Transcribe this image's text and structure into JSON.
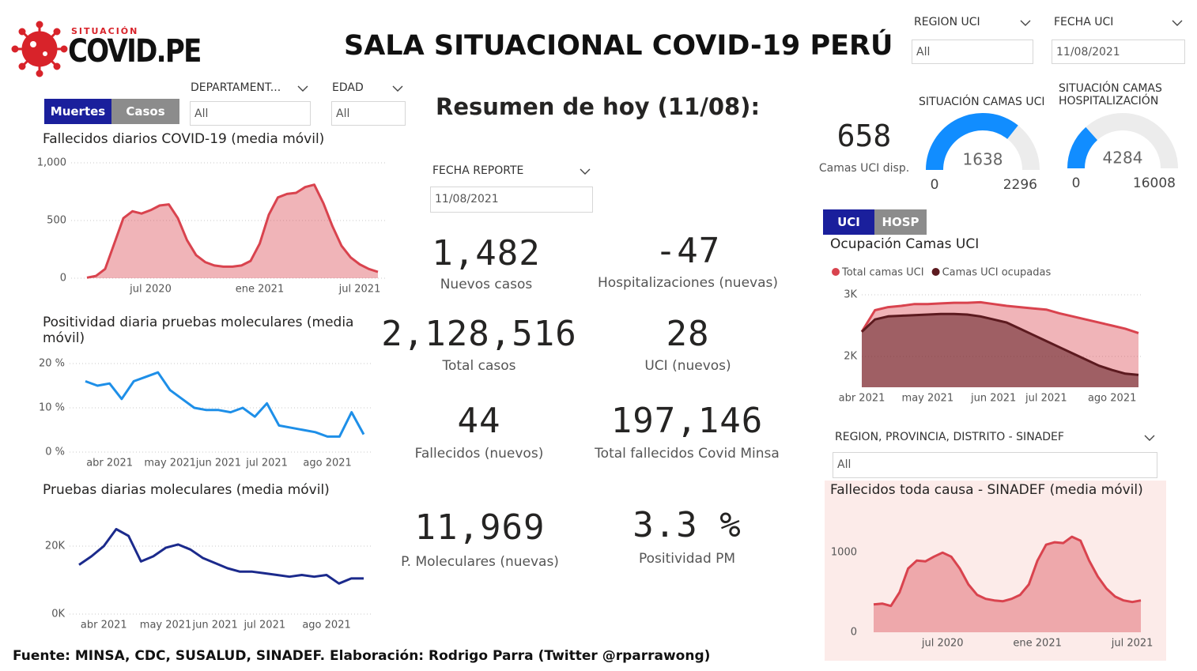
{
  "header": {
    "title": "SALA SITUACIONAL COVID-19 PERÚ",
    "logo_top": "SITUACIÓN",
    "logo_main": "COVID.PE"
  },
  "toggles": [
    {
      "options": [
        "Muertes",
        "Casos"
      ]
    },
    {
      "options": [
        "UCI",
        "HOSP"
      ]
    }
  ],
  "slicers": [
    {
      "label": "DEPARTAMENT...",
      "value": "All"
    },
    {
      "label": "EDAD",
      "value": "All"
    },
    {
      "label": "REGION UCI",
      "value": "All"
    },
    {
      "label": "FECHA UCI",
      "value": "11/08/2021"
    },
    {
      "label": "FECHA REPORTE",
      "value": "11/08/2021"
    },
    {
      "label": "REGION, PROVINCIA, DISTRITO - SINADEF",
      "value": "All"
    }
  ],
  "summary_title": "Resumen de hoy (11/08):",
  "kpis": [
    {
      "value": "1,482",
      "label": "Nuevos casos"
    },
    {
      "value": "-47",
      "label": "Hospitalizaciones (nuevas)"
    },
    {
      "value": "2,128,516",
      "label": "Total casos"
    },
    {
      "value": "28",
      "label": "UCI (nuevos)"
    },
    {
      "value": "44",
      "label": "Fallecidos (nuevos)"
    },
    {
      "value": "197,146",
      "label": "Total fallecidos Covid Minsa"
    },
    {
      "value": "11,969",
      "label": "P. Moleculares (nuevas)"
    },
    {
      "value": "3.3 %",
      "label": "Positividad PM"
    }
  ],
  "uci_available": {
    "value": "658",
    "label": "Camas UCI disp."
  },
  "footer": "Fuente: MINSA, CDC, SUSALUD, SINADEF. Elaboración: Rodrigo Parra (Twitter @rparrawong)",
  "chart_data": [
    {
      "type": "area",
      "title": "Fallecidos diarios COVID-19 (media móvil)",
      "categories": [
        null,
        null,
        null,
        null,
        null,
        null,
        null,
        "jul 2020",
        null,
        null,
        null,
        null,
        null,
        null,
        null,
        null,
        null,
        null,
        null,
        "ene 2021",
        null,
        null,
        null,
        null,
        null,
        null,
        null,
        null,
        null,
        null,
        "jul 2021",
        null,
        null
      ],
      "series": [
        {
          "name": "Fallecidos",
          "color": "#d9434e",
          "values": [
            5,
            20,
            80,
            300,
            520,
            580,
            560,
            590,
            630,
            640,
            520,
            330,
            200,
            140,
            110,
            100,
            100,
            110,
            150,
            300,
            550,
            700,
            730,
            740,
            790,
            810,
            650,
            450,
            280,
            180,
            120,
            80,
            55
          ]
        }
      ],
      "ylim": [
        0,
        1000
      ],
      "yticks": [
        0,
        500,
        {
          "value": 1000,
          "label": "1,000"
        }
      ],
      "grid": true
    },
    {
      "type": "line",
      "title": "Positividad diaria pruebas moleculares (media móvil)",
      "categories": [
        null,
        null,
        "abr 2021",
        null,
        null,
        null,
        null,
        "may 2021",
        null,
        null,
        null,
        "jun 2021",
        null,
        null,
        null,
        "jul 2021",
        null,
        null,
        null,
        null,
        "ago 2021",
        null,
        null,
        null
      ],
      "series": [
        {
          "name": "Positividad",
          "color": "#1e8fe8",
          "values": [
            16,
            15,
            15.5,
            12,
            16,
            17,
            18,
            14,
            12,
            10,
            9.5,
            9.5,
            9,
            10,
            8,
            11,
            6,
            5.5,
            5,
            4.5,
            3.5,
            3.5,
            9,
            4
          ]
        }
      ],
      "ylim": [
        0,
        20
      ],
      "yticks": [
        {
          "value": 0,
          "label": "0 %"
        },
        {
          "value": 10,
          "label": "10 %"
        },
        {
          "value": 20,
          "label": "20 %"
        }
      ],
      "grid": true
    },
    {
      "type": "line",
      "title": "Pruebas diarias moleculares (media móvil)",
      "categories": [
        null,
        null,
        "abr 2021",
        null,
        null,
        null,
        null,
        "may 2021",
        null,
        null,
        null,
        "jun 2021",
        null,
        null,
        null,
        "jul 2021",
        null,
        null,
        null,
        null,
        "ago 2021",
        null,
        null,
        null
      ],
      "series": [
        {
          "name": "Pruebas",
          "color": "#1b2a8c",
          "values": [
            14500,
            17000,
            20000,
            25000,
            23000,
            15500,
            17000,
            19500,
            20500,
            19000,
            16500,
            15000,
            13500,
            12500,
            12500,
            12000,
            11500,
            11000,
            11500,
            11000,
            11500,
            9000,
            10500,
            10500
          ]
        }
      ],
      "ylim": [
        0,
        30000
      ],
      "yticks": [
        {
          "value": 0,
          "label": "0K"
        },
        {
          "value": 20000,
          "label": "20K"
        }
      ],
      "grid": true
    },
    {
      "type": "area",
      "title": "Ocupación Camas UCI",
      "categories": [
        "abr 2021",
        null,
        null,
        null,
        null,
        "may 2021",
        null,
        null,
        null,
        null,
        "jun 2021",
        null,
        null,
        null,
        "jul 2021",
        null,
        null,
        null,
        null,
        "ago 2021",
        null,
        null
      ],
      "series": [
        {
          "name": "Total camas UCI",
          "color": "#d9434e",
          "values": [
            2400,
            2750,
            2800,
            2820,
            2850,
            2850,
            2860,
            2870,
            2870,
            2880,
            2850,
            2820,
            2800,
            2780,
            2760,
            2700,
            2650,
            2600,
            2550,
            2500,
            2450,
            2380
          ]
        },
        {
          "name": "Camas UCI ocupadas",
          "color": "#5c1a1f",
          "values": [
            2400,
            2600,
            2650,
            2660,
            2670,
            2680,
            2690,
            2690,
            2680,
            2650,
            2600,
            2550,
            2450,
            2350,
            2250,
            2150,
            2050,
            1950,
            1850,
            1780,
            1720,
            1700
          ]
        }
      ],
      "ylim": [
        1500,
        3000
      ],
      "yticks": [
        {
          "value": 2000,
          "label": "2K"
        },
        {
          "value": 3000,
          "label": "3K"
        }
      ],
      "grid": true
    },
    {
      "type": "area",
      "title": "Fallecidos toda causa - SINADEF (media móvil)",
      "categories": [
        null,
        null,
        null,
        null,
        null,
        null,
        null,
        null,
        "jul 2020",
        null,
        null,
        null,
        null,
        null,
        null,
        null,
        null,
        null,
        null,
        "ene 2021",
        null,
        null,
        null,
        null,
        null,
        null,
        null,
        null,
        null,
        null,
        "jul 2021",
        null
      ],
      "series": [
        {
          "name": "Fallecidos",
          "color": "#d9434e",
          "values": [
            350,
            360,
            330,
            500,
            800,
            900,
            890,
            950,
            1000,
            950,
            800,
            600,
            470,
            420,
            400,
            390,
            420,
            470,
            600,
            900,
            1100,
            1130,
            1120,
            1200,
            1150,
            900,
            700,
            550,
            450,
            400,
            380,
            400
          ]
        }
      ],
      "ylim": [
        0,
        1300
      ],
      "yticks": [
        0,
        1000
      ],
      "grid": false
    },
    {
      "type": "gauge",
      "title": "SITUACIÓN CAMAS UCI",
      "value": 1638,
      "min": 0,
      "max": 2296,
      "color": "#118dff"
    },
    {
      "type": "gauge",
      "title": "SITUACIÓN CAMAS HOSPITALIZACIÓN",
      "value": 4284,
      "min": 0,
      "max": 16008,
      "color": "#118dff"
    }
  ]
}
